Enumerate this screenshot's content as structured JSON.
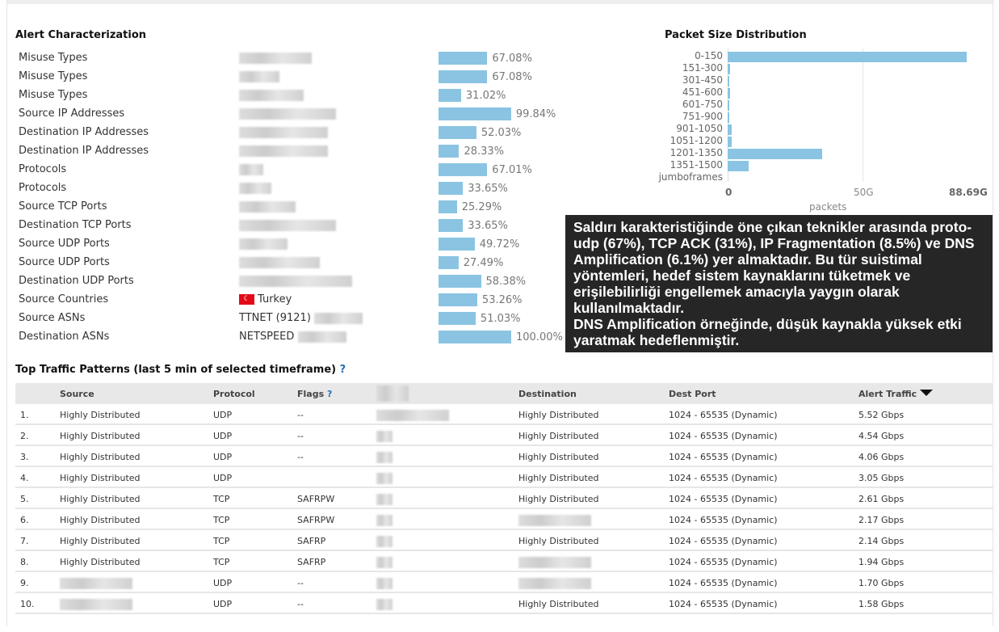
{
  "alert_characterization": {
    "title": "Alert Characterization",
    "rows": [
      {
        "label": "Misuse Types",
        "value": "",
        "pct": 67.08,
        "pct_text": "67.08%"
      },
      {
        "label": "Misuse Types",
        "value": "",
        "pct": 67.08,
        "pct_text": "67.08%"
      },
      {
        "label": "Misuse Types",
        "value": "",
        "pct": 31.02,
        "pct_text": "31.02%"
      },
      {
        "label": "Source IP Addresses",
        "value": "",
        "pct": 99.84,
        "pct_text": "99.84%"
      },
      {
        "label": "Destination IP Addresses",
        "value": "",
        "pct": 52.03,
        "pct_text": "52.03%"
      },
      {
        "label": "Destination IP Addresses",
        "value": "",
        "pct": 28.33,
        "pct_text": "28.33%"
      },
      {
        "label": "Protocols",
        "value": "",
        "pct": 67.01,
        "pct_text": "67.01%"
      },
      {
        "label": "Protocols",
        "value": "",
        "pct": 33.65,
        "pct_text": "33.65%"
      },
      {
        "label": "Source TCP Ports",
        "value": "",
        "pct": 25.29,
        "pct_text": "25.29%"
      },
      {
        "label": "Destination TCP Ports",
        "value": "",
        "pct": 33.65,
        "pct_text": "33.65%"
      },
      {
        "label": "Source UDP Ports",
        "value": "",
        "pct": 49.72,
        "pct_text": "49.72%"
      },
      {
        "label": "Source UDP Ports",
        "value": "",
        "pct": 27.49,
        "pct_text": "27.49%"
      },
      {
        "label": "Destination UDP Ports",
        "value": "",
        "pct": 58.38,
        "pct_text": "58.38%"
      },
      {
        "label": "Source Countries",
        "value": "Turkey",
        "flag": "turkey-flag",
        "pct": 53.26,
        "pct_text": "53.26%"
      },
      {
        "label": "Source ASNs",
        "value": "TTNET (9121)",
        "pct": 51.03,
        "pct_text": "51.03%"
      },
      {
        "label": "Destination ASNs",
        "value": "NETSPEED",
        "pct": 100,
        "pct_text": "100.00%"
      }
    ]
  },
  "chart_data": {
    "type": "bar",
    "orientation": "horizontal",
    "title": "Packet Size Distribution",
    "xlabel": "packets",
    "categories": [
      "0-150",
      "151-300",
      "301-450",
      "451-600",
      "601-750",
      "751-900",
      "901-1050",
      "1051-1200",
      "1201-1350",
      "1351-1500",
      "jumboframes"
    ],
    "values": [
      88.69,
      0.8,
      0.6,
      0.8,
      0.6,
      0.6,
      1.5,
      1.5,
      35,
      7.8,
      0
    ],
    "unit": "G",
    "xlim": [
      0,
      88.69
    ],
    "x_ticks": [
      "0",
      "50G",
      "88.69G"
    ],
    "grid": true,
    "color": "#8ac4e2"
  },
  "traffic": {
    "title": "Top Traffic Patterns (last 5 min of selected timeframe)",
    "help": "?",
    "headers": {
      "source": "Source",
      "protocol": "Protocol",
      "flags": "Flags",
      "flags_help": "?",
      "destination": "Destination",
      "dest_port": "Dest Port",
      "alert_traffic": "Alert Traffic"
    },
    "rows": [
      {
        "n": "1.",
        "source": "Highly Distributed",
        "protocol": "UDP",
        "flags": "--",
        "destination": "Highly Distributed",
        "port": "1024 - 65535 (Dynamic)",
        "traffic": "5.52 Gbps"
      },
      {
        "n": "2.",
        "source": "Highly Distributed",
        "protocol": "UDP",
        "flags": "--",
        "destination": "Highly Distributed",
        "port": "1024 - 65535 (Dynamic)",
        "traffic": "4.54 Gbps"
      },
      {
        "n": "3.",
        "source": "Highly Distributed",
        "protocol": "UDP",
        "flags": "--",
        "destination": "Highly Distributed",
        "port": "1024 - 65535 (Dynamic)",
        "traffic": "4.06 Gbps"
      },
      {
        "n": "4.",
        "source": "Highly Distributed",
        "protocol": "UDP",
        "flags": "",
        "destination": "Highly Distributed",
        "port": "1024 - 65535 (Dynamic)",
        "traffic": "3.05 Gbps"
      },
      {
        "n": "5.",
        "source": "Highly Distributed",
        "protocol": "TCP",
        "flags": "SAFRPW",
        "destination": "Highly Distributed",
        "port": "1024 - 65535 (Dynamic)",
        "traffic": "2.61 Gbps"
      },
      {
        "n": "6.",
        "source": "Highly Distributed",
        "protocol": "TCP",
        "flags": "SAFRPW",
        "destination": "",
        "port": "1024 - 65535 (Dynamic)",
        "traffic": "2.17 Gbps"
      },
      {
        "n": "7.",
        "source": "Highly Distributed",
        "protocol": "TCP",
        "flags": "SAFRP",
        "destination": "Highly Distributed",
        "port": "1024 - 65535 (Dynamic)",
        "traffic": "2.14 Gbps"
      },
      {
        "n": "8.",
        "source": "Highly Distributed",
        "protocol": "TCP",
        "flags": "SAFRP",
        "destination": "",
        "port": "1024 - 65535 (Dynamic)",
        "traffic": "1.94 Gbps"
      },
      {
        "n": "9.",
        "source": "",
        "protocol": "UDP",
        "flags": "--",
        "destination": "",
        "port": "1024 - 65535 (Dynamic)",
        "traffic": "1.70 Gbps"
      },
      {
        "n": "10.",
        "source": "",
        "protocol": "UDP",
        "flags": "--",
        "destination": "Highly Distributed",
        "port": "1024 - 65535 (Dynamic)",
        "traffic": "1.58 Gbps"
      }
    ]
  },
  "overlay": {
    "lines": [
      "Saldırı karakteristiğinde öne çıkan teknikler arasında proto-udp (67%), TCP ACK (31%), IP Fragmentation (8.5%)",
      "ve DNS Amplification (6.1%) yer almaktadır. Bu tür suistimal yöntemleri, hedef sistem kaynaklarını tüketmek ve",
      "erişilebilirliği engellemek amacıyla yaygın olarak kullanılmaktadır.",
      "DNS Amplification örneğinde, düşük kaynakla yüksek etki yaratmak hedeflenmiştir."
    ]
  }
}
